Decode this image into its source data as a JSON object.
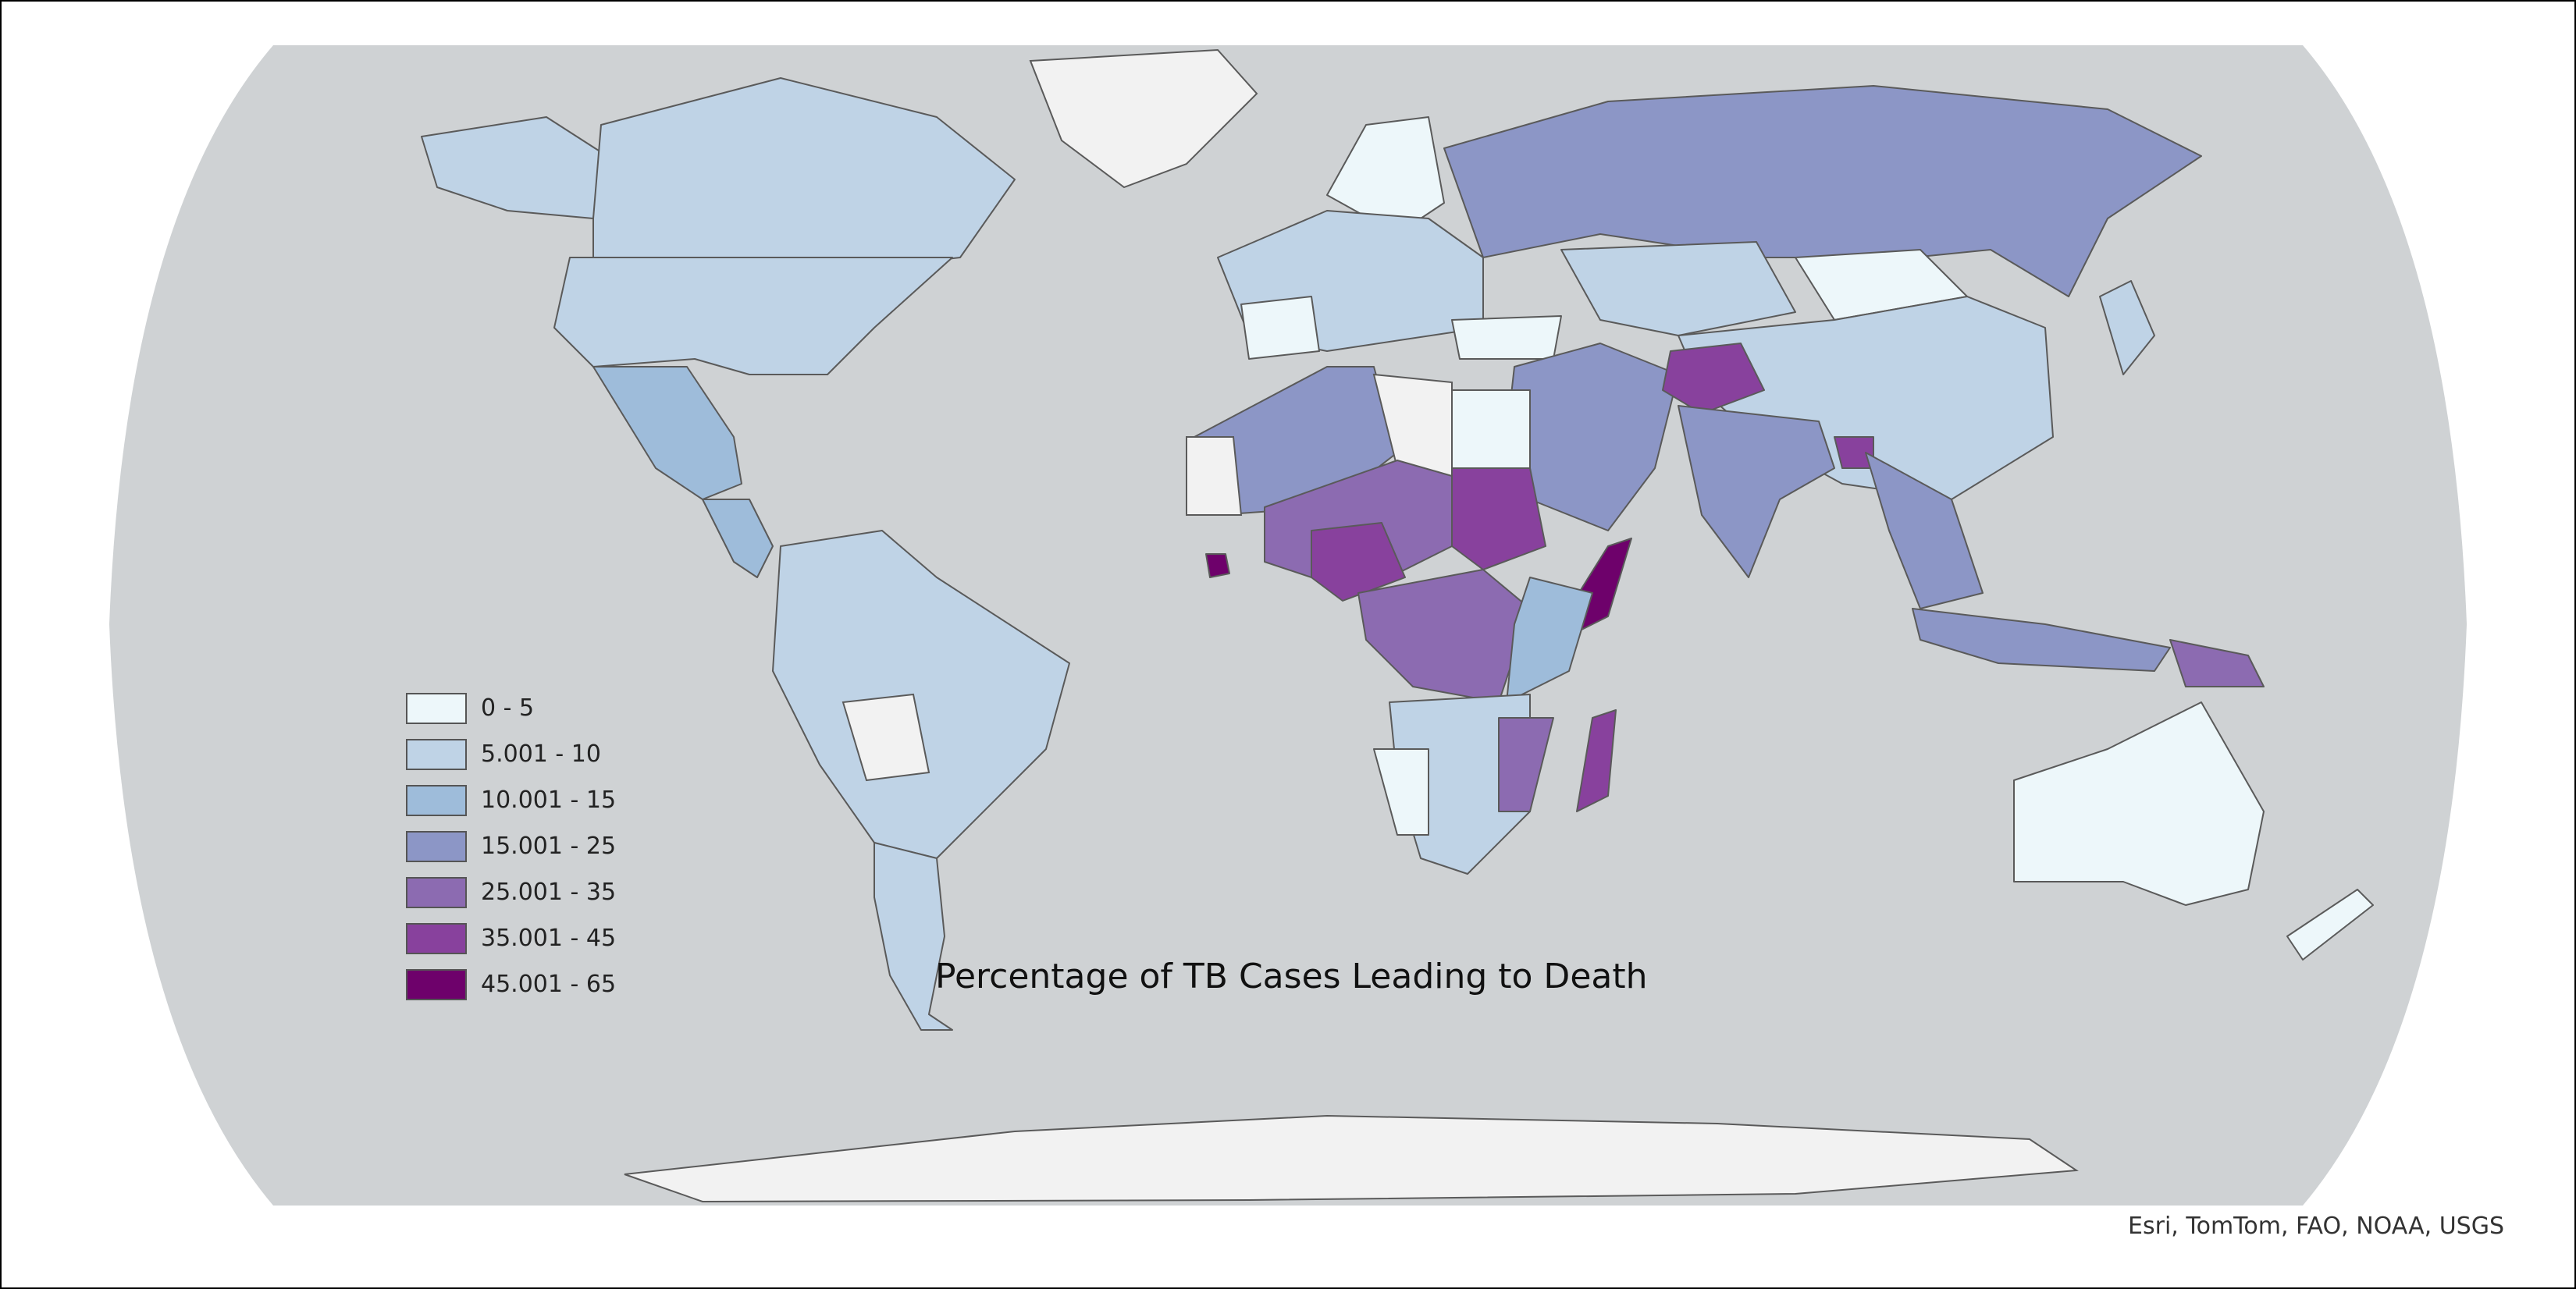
{
  "map": {
    "title": "Percentage of TB Cases Leading to Death",
    "attribution": "Esri, TomTom, FAO, NOAA, USGS",
    "projection": "robinson",
    "colors": {
      "ocean": "#cfd2d4",
      "no_data": "#f2f2f2",
      "border": "#5a5a5a"
    },
    "legend": [
      {
        "label": "0 - 5",
        "color": "#edf7fa"
      },
      {
        "label": "5.001 - 10",
        "color": "#bfd3e6"
      },
      {
        "label": "10.001 - 15",
        "color": "#9ebcda"
      },
      {
        "label": "15.001 - 25",
        "color": "#8c96c6"
      },
      {
        "label": "25.001 - 35",
        "color": "#8c6bb1"
      },
      {
        "label": "35.001 - 45",
        "color": "#88419d"
      },
      {
        "label": "45.001 - 65",
        "color": "#6e016b"
      }
    ]
  }
}
